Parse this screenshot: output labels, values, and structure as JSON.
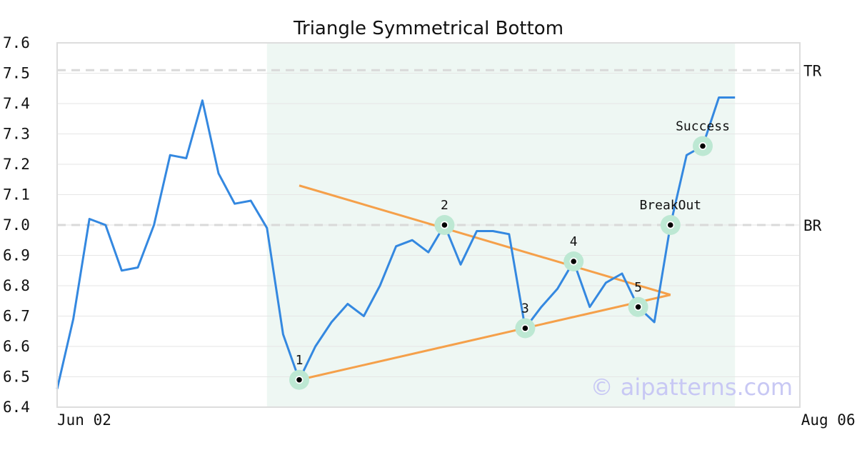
{
  "chart_data": {
    "type": "line",
    "title": "Triangle Symmetrical Bottom",
    "xlabel": "",
    "ylabel": "",
    "ylim": [
      6.4,
      7.6
    ],
    "yticks": [
      "6.4",
      "6.5",
      "6.6",
      "6.7",
      "6.8",
      "6.9",
      "7.0",
      "7.1",
      "7.2",
      "7.3",
      "7.4",
      "7.5",
      "7.6"
    ],
    "x_tick_labels": [
      {
        "index": 0,
        "label": "Jun 02"
      },
      {
        "index": 46,
        "label": "Aug 06"
      }
    ],
    "grid": true,
    "series": [
      {
        "color": "#3488e0",
        "values": [
          6.46,
          6.69,
          7.02,
          7.0,
          6.85,
          6.86,
          7.0,
          7.23,
          7.22,
          7.41,
          7.17,
          7.07,
          7.08,
          6.99,
          6.64,
          6.49,
          6.6,
          6.68,
          6.74,
          6.7,
          6.8,
          6.93,
          6.95,
          6.91,
          7.0,
          6.87,
          6.98,
          6.98,
          6.97,
          6.66,
          6.73,
          6.79,
          6.88,
          6.73,
          6.81,
          6.84,
          6.73,
          6.68,
          7.0,
          7.23,
          7.26,
          7.42,
          7.42
        ]
      }
    ],
    "pattern_window": {
      "start_index": 13,
      "end_index": 42,
      "color": "#eef7f3"
    },
    "reference_lines": [
      {
        "label": "TR",
        "value": 7.51
      },
      {
        "label": "BR",
        "value": 7.0
      }
    ],
    "trend_lines": [
      {
        "from": {
          "index": 15,
          "value": 7.13
        },
        "to": {
          "index": 38,
          "value": 6.77
        },
        "color": "#f5a04a"
      },
      {
        "from": {
          "index": 15,
          "value": 6.49
        },
        "to": {
          "index": 38,
          "value": 6.77
        },
        "color": "#f5a04a"
      }
    ],
    "points": [
      {
        "label": "1",
        "index": 15,
        "value": 6.49
      },
      {
        "label": "2",
        "index": 24,
        "value": 7.0
      },
      {
        "label": "3",
        "index": 29,
        "value": 6.66
      },
      {
        "label": "4",
        "index": 32,
        "value": 6.88
      },
      {
        "label": "5",
        "index": 36,
        "value": 6.73
      },
      {
        "label": "BreakOut",
        "index": 38,
        "value": 7.0
      },
      {
        "label": "Success",
        "index": 40,
        "value": 7.26
      }
    ],
    "watermark": "© aipatterns.com"
  }
}
